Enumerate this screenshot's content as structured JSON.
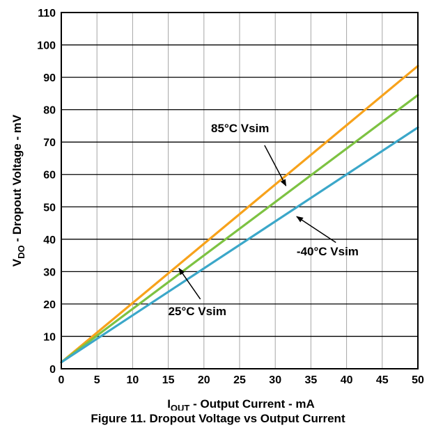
{
  "caption": "Figure 11. Dropout Voltage vs Output Current",
  "chart_data": {
    "type": "line",
    "x": [
      0,
      50
    ],
    "xlim": [
      0,
      50
    ],
    "ylim": [
      0,
      110
    ],
    "x_ticks": [
      "0",
      "5",
      "10",
      "15",
      "20",
      "25",
      "30",
      "35",
      "40",
      "45",
      "50"
    ],
    "y_ticks": [
      "0",
      "10",
      "20",
      "30",
      "40",
      "50",
      "60",
      "70",
      "80",
      "90",
      "100",
      "110"
    ],
    "xlabel": {
      "main": "I",
      "sub": "OUT",
      "rest": " - Output Current - mA"
    },
    "ylabel": {
      "main": "V",
      "sub": "DO",
      "rest": " - Dropout Voltage - mV"
    },
    "grid": true,
    "series": [
      {
        "name": "85°C Vsim",
        "values": [
          2,
          93.5
        ],
        "color": "#F7A21B"
      },
      {
        "name": "25°C Vsim",
        "values": [
          2,
          84.5
        ],
        "color": "#7DC242"
      },
      {
        "name": "-40°C Vsim",
        "values": [
          2,
          74.5
        ],
        "color": "#3BA7C9"
      }
    ],
    "annotations": [
      {
        "text": "85°C Vsim",
        "label_at": [
          21,
          73
        ],
        "arrow_from": [
          28.5,
          69
        ],
        "arrow_to": [
          31.5,
          56.5
        ]
      },
      {
        "text": "-40°C Vsim",
        "label_at": [
          33,
          35
        ],
        "arrow_from": [
          38.5,
          39
        ],
        "arrow_to": [
          33,
          47
        ]
      },
      {
        "text": "25°C Vsim",
        "label_at": [
          15,
          16.5
        ],
        "arrow_from": [
          19.5,
          21.5
        ],
        "arrow_to": [
          16.5,
          31
        ]
      }
    ]
  }
}
